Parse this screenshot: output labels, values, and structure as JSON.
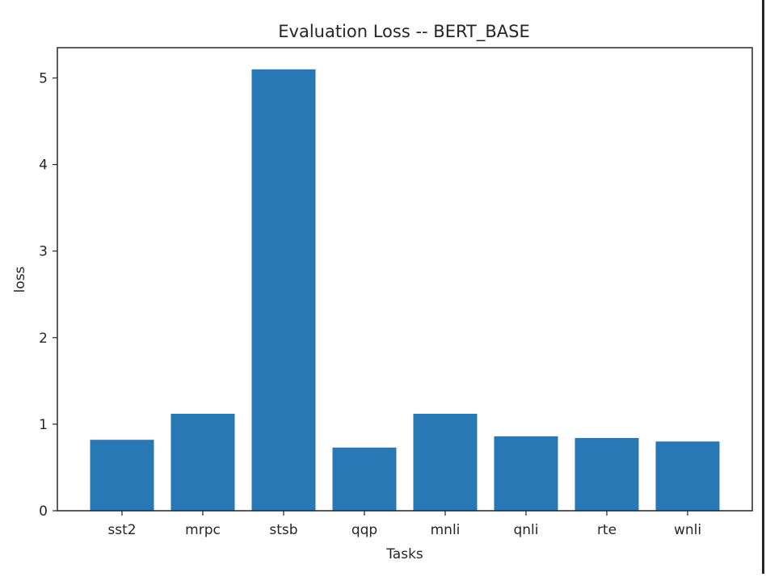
{
  "chart_data": {
    "type": "bar",
    "title": "Evaluation Loss -- BERT_BASE",
    "xlabel": "Tasks",
    "ylabel": "loss",
    "categories": [
      "sst2",
      "mrpc",
      "stsb",
      "qqp",
      "mnli",
      "qnli",
      "rte",
      "wnli"
    ],
    "values": [
      0.82,
      1.12,
      5.1,
      0.73,
      1.12,
      0.86,
      0.84,
      0.8
    ],
    "ylim": [
      0,
      5.35
    ],
    "yticks": [
      0,
      1,
      2,
      3,
      4,
      5
    ],
    "grid": false,
    "bar_color": "#2878b5"
  }
}
